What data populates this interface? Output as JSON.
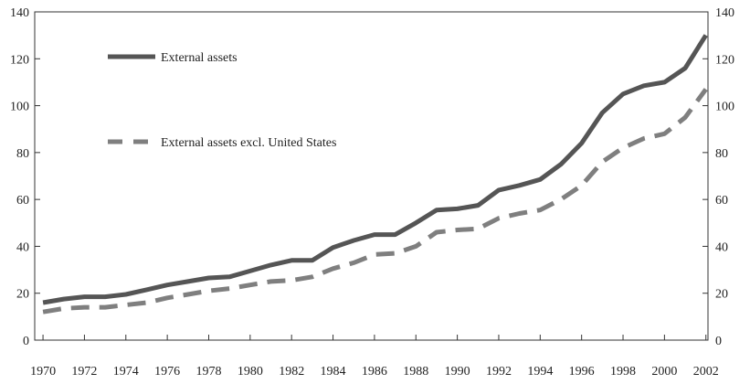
{
  "chart_data": {
    "type": "line",
    "x": [
      1970,
      1971,
      1972,
      1973,
      1974,
      1975,
      1976,
      1977,
      1978,
      1979,
      1980,
      1981,
      1982,
      1983,
      1984,
      1985,
      1986,
      1987,
      1988,
      1989,
      1990,
      1991,
      1992,
      1993,
      1994,
      1995,
      1996,
      1997,
      1998,
      1999,
      2000,
      2001,
      2002
    ],
    "series": [
      {
        "name": "External assets",
        "color": "#555555",
        "dash": "solid",
        "values": [
          16,
          17.5,
          18.5,
          18.5,
          19.5,
          21.5,
          23.5,
          25,
          26.5,
          27,
          29.5,
          32,
          34,
          34,
          39.5,
          42.5,
          45,
          45,
          50,
          55.5,
          56,
          57.5,
          64,
          66,
          68.5,
          75,
          84,
          97,
          105,
          108.5,
          110,
          116,
          130
        ]
      },
      {
        "name": "External assets excl. United States",
        "color": "#7f7f7f",
        "dash": "dashed",
        "values": [
          12,
          13.5,
          14,
          14,
          15,
          16,
          18,
          19.5,
          21,
          22,
          23.5,
          25,
          25.5,
          27,
          30.5,
          33,
          36.5,
          37,
          40,
          46,
          47,
          47.5,
          52,
          54,
          55.5,
          60,
          66,
          76,
          82,
          86,
          88,
          95,
          107
        ]
      }
    ],
    "xlim": [
      1969.6,
      2002.1
    ],
    "xticks": [
      1970,
      1972,
      1974,
      1976,
      1978,
      1980,
      1982,
      1984,
      1986,
      1988,
      1990,
      1992,
      1994,
      1996,
      1998,
      2000,
      2002
    ],
    "ylim": [
      0,
      140
    ],
    "yticks": [
      0,
      20,
      40,
      60,
      80,
      100,
      120,
      140
    ],
    "y2lim": [
      0,
      140
    ],
    "y2ticks": [
      0,
      20,
      40,
      60,
      80,
      100,
      120,
      140
    ],
    "grid": false
  }
}
